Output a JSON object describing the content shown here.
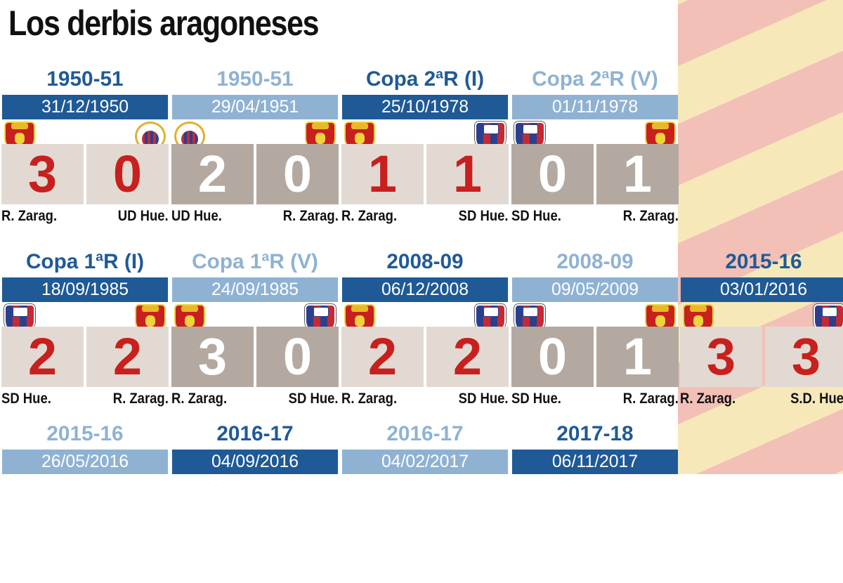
{
  "title": "Los derbis aragoneses",
  "matches": [
    {
      "heading": "1950-51",
      "date": "31/12/1950",
      "home_team": "R. Zarag.",
      "away_team": "UD Hue.",
      "home_score": "3",
      "away_score": "0",
      "home_crest": "real-zaragoza-crest",
      "away_crest": "ud-huesca-crest",
      "style": "dark"
    },
    {
      "heading": "1950-51",
      "date": "29/04/1951",
      "home_team": "UD Hue.",
      "away_team": "R. Zarag.",
      "home_score": "2",
      "away_score": "0",
      "home_crest": "ud-huesca-crest",
      "away_crest": "real-zaragoza-crest",
      "style": "light"
    },
    {
      "heading": "Copa 2ªR (I)",
      "date": "25/10/1978",
      "home_team": "R. Zarag.",
      "away_team": "SD Hue.",
      "home_score": "1",
      "away_score": "1",
      "home_crest": "real-zaragoza-crest",
      "away_crest": "sd-huesca-crest",
      "style": "dark"
    },
    {
      "heading": "Copa 2ªR (V)",
      "date": "01/11/1978",
      "home_team": "SD Hue.",
      "away_team": "R. Zarag.",
      "home_score": "0",
      "away_score": "1",
      "home_crest": "sd-huesca-crest",
      "away_crest": "real-zaragoza-crest",
      "style": "light"
    },
    {
      "heading": "Copa 1ªR (I)",
      "date": "18/09/1985",
      "home_team": "SD Hue.",
      "away_team": "R. Zarag.",
      "home_score": "2",
      "away_score": "2",
      "home_crest": "sd-huesca-crest",
      "away_crest": "real-zaragoza-crest",
      "style": "dark"
    },
    {
      "heading": "Copa 1ªR (V)",
      "date": "24/09/1985",
      "home_team": "R. Zarag.",
      "away_team": "SD Hue.",
      "home_score": "3",
      "away_score": "0",
      "home_crest": "real-zaragoza-crest",
      "away_crest": "sd-huesca-crest",
      "style": "light"
    },
    {
      "heading": "2008-09",
      "date": "06/12/2008",
      "home_team": "R. Zarag.",
      "away_team": "SD Hue.",
      "home_score": "2",
      "away_score": "2",
      "home_crest": "real-zaragoza-crest",
      "away_crest": "sd-huesca-crest",
      "style": "dark"
    },
    {
      "heading": "2008-09",
      "date": "09/05/2009",
      "home_team": "SD Hue.",
      "away_team": "R. Zarag.",
      "home_score": "0",
      "away_score": "1",
      "home_crest": "sd-huesca-crest",
      "away_crest": "real-zaragoza-crest",
      "style": "light"
    },
    {
      "heading": "2015-16",
      "date": "03/01/2016",
      "home_team": "R. Zarag.",
      "away_team": "S.D. Hue.",
      "home_score": "3",
      "away_score": "3",
      "home_crest": "real-zaragoza-crest",
      "away_crest": "sd-huesca-crest",
      "style": "dark"
    },
    {
      "heading": "2015-16",
      "date": "26/05/2016",
      "style": "light"
    },
    {
      "heading": "2016-17",
      "date": "04/09/2016",
      "style": "dark"
    },
    {
      "heading": "2016-17",
      "date": "04/02/2017",
      "style": "light"
    },
    {
      "heading": "2017-18",
      "date": "06/11/2017",
      "style": "dark"
    }
  ],
  "colors": {
    "dark_blue": "#1f5a96",
    "light_blue": "#8fb2d3",
    "score_red": "#c8201e",
    "box_light": "#e2dad2",
    "box_dark": "#b3a9a0",
    "flag_yellow": "#f7e8b9",
    "flag_red": "#f2c0b7"
  }
}
